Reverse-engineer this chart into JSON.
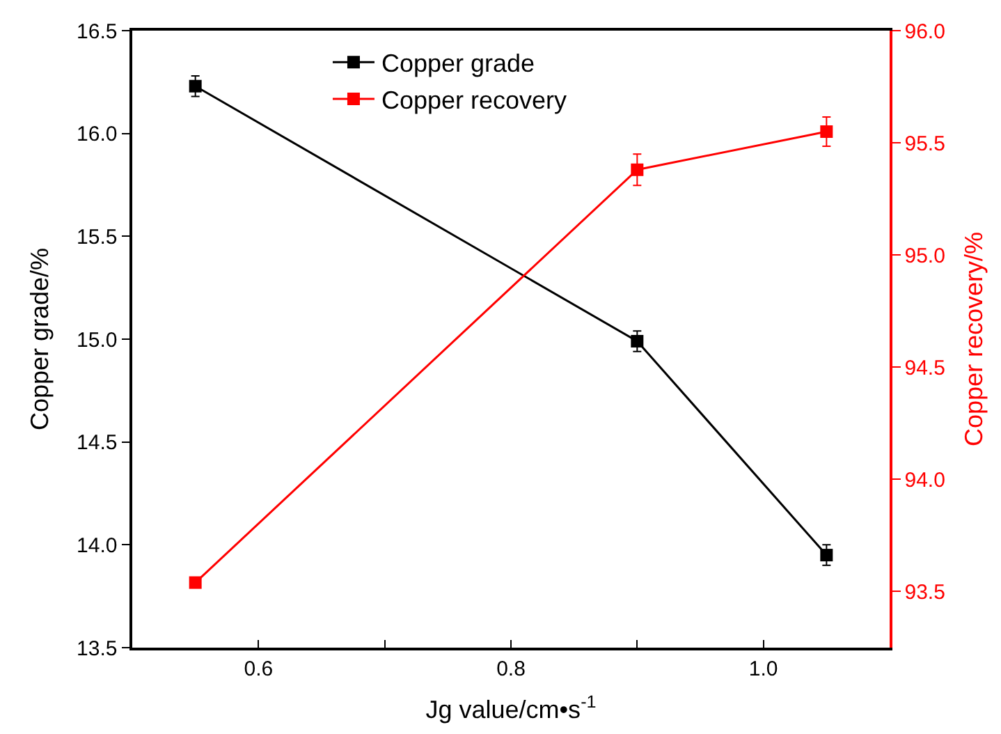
{
  "chart_data": {
    "type": "line",
    "xlabel": "Jg value/cm•s$^{-1}$",
    "ylabel": "Copper grade/%",
    "y2label": "Copper recovery/%",
    "x": [
      0.55,
      0.9,
      1.05
    ],
    "series": [
      {
        "name": "Copper grade",
        "color": "#000000",
        "values": [
          16.23,
          14.99,
          13.95
        ],
        "errors": [
          0.05,
          0.05,
          0.05
        ]
      },
      {
        "name": "Copper recovery",
        "color": "#ff0000",
        "axis": "y2",
        "values": [
          93.54,
          95.38,
          95.55
        ],
        "errors": [
          null,
          0.07,
          0.065
        ]
      }
    ],
    "xlim": [
      0.5,
      1.1
    ],
    "xticks": [
      {
        "value": 0.6,
        "label": "0.6"
      },
      {
        "value": 0.7,
        "label": null
      },
      {
        "value": 0.8,
        "label": "0.8"
      },
      {
        "value": 0.9,
        "label": null
      },
      {
        "value": 1.0,
        "label": "1.0"
      }
    ],
    "ylim": [
      13.5,
      16.5
    ],
    "yticks": [
      {
        "value": 13.5,
        "label": "13.5"
      },
      {
        "value": 14.0,
        "label": "14.0"
      },
      {
        "value": 14.5,
        "label": "14.5"
      },
      {
        "value": 15.0,
        "label": "15.0"
      },
      {
        "value": 15.5,
        "label": "15.5"
      },
      {
        "value": 16.0,
        "label": "16.0"
      },
      {
        "value": 16.5,
        "label": "16.5"
      }
    ],
    "y2lim": [
      93.25,
      96.0
    ],
    "y2ticks": [
      {
        "value": 93.5,
        "label": "93.5"
      },
      {
        "value": 94.0,
        "label": "94.0"
      },
      {
        "value": 94.5,
        "label": "94.5"
      },
      {
        "value": 95.0,
        "label": "95.0"
      },
      {
        "value": 95.5,
        "label": "95.5"
      },
      {
        "value": 96.0,
        "label": "96.0"
      }
    ],
    "legend": "top",
    "marker": "square",
    "line_style": "solid"
  }
}
